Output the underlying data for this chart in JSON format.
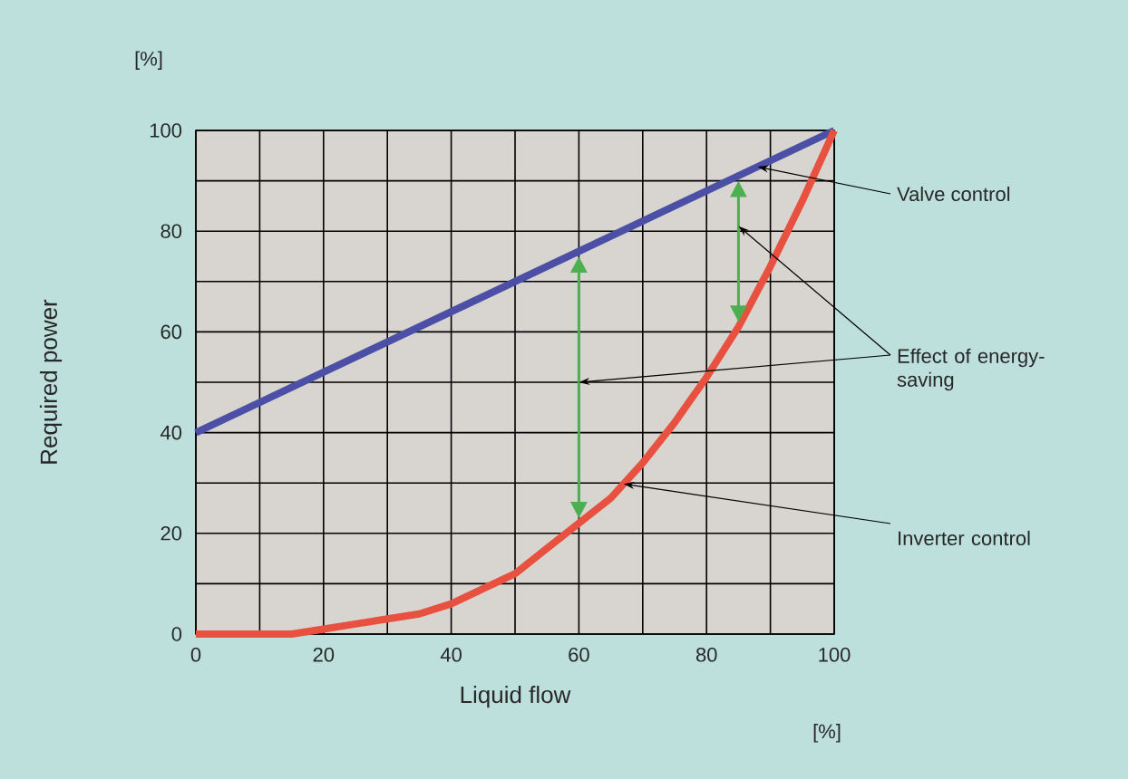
{
  "chart_data": {
    "type": "line",
    "xlabel": "Liquid flow",
    "ylabel": "Required power",
    "xlim": [
      0,
      100
    ],
    "ylim": [
      0,
      100
    ],
    "xticks": [
      0,
      20,
      40,
      60,
      80,
      100
    ],
    "yticks": [
      0,
      20,
      40,
      60,
      80,
      100
    ],
    "grid": true,
    "marker": "none",
    "line_style": "solid",
    "series": [
      {
        "name": "Valve control",
        "color": "#4b4fa6",
        "x": [
          0,
          100
        ],
        "values": [
          40,
          100
        ]
      },
      {
        "name": "Inverter control",
        "color": "#e8513f",
        "x": [
          0,
          10,
          15,
          20,
          25,
          30,
          35,
          40,
          45,
          50,
          55,
          60,
          65,
          70,
          75,
          80,
          85,
          90,
          95,
          100
        ],
        "values": [
          0,
          0,
          0,
          1,
          2,
          3,
          4,
          6,
          9,
          12,
          17,
          22,
          27,
          34,
          42,
          51,
          61,
          73,
          86,
          100
        ]
      }
    ],
    "annotations": [
      "Effect of energy-saving",
      "[%]",
      "[%]"
    ]
  }
}
